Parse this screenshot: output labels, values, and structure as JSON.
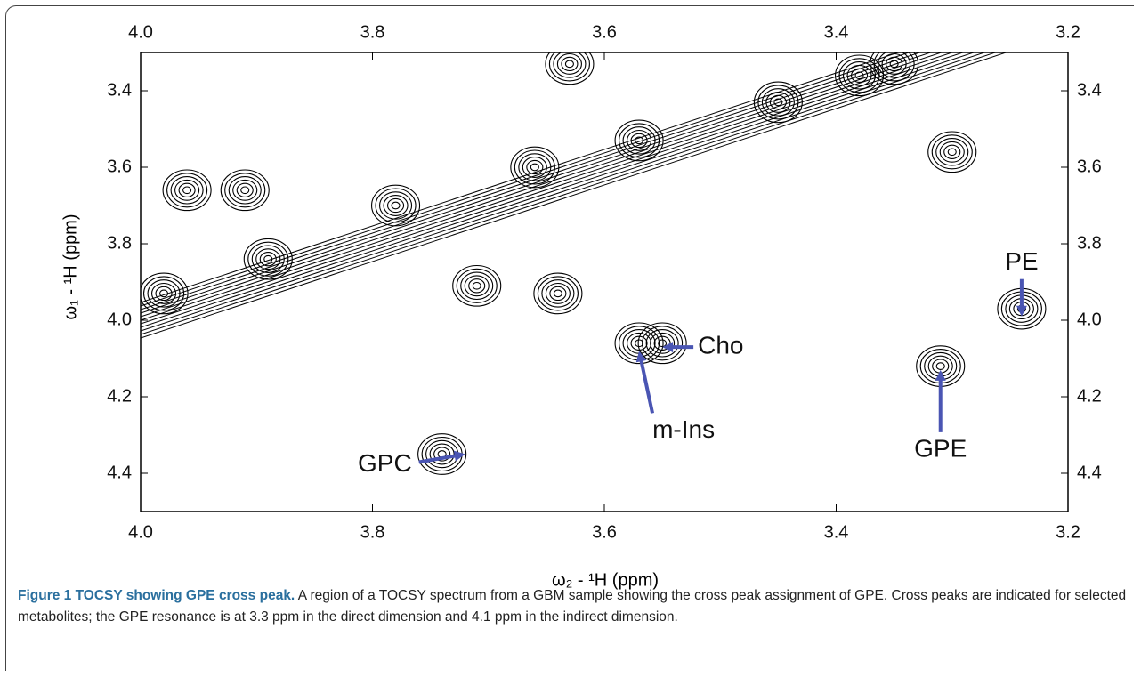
{
  "chart_data": {
    "type": "contour",
    "xlabel": "ω₂ - ¹H (ppm)",
    "ylabel": "ω₁ - ¹H (ppm)",
    "xlim": [
      4.0,
      3.2
    ],
    "ylim": [
      3.3,
      4.5
    ],
    "xticks": [
      {
        "value": 4,
        "label": "4.0"
      },
      3.8,
      3.6,
      3.4,
      {
        "value": 3.2,
        "label": "3.2"
      }
    ],
    "yticks": [
      3.4,
      3.6,
      3.8,
      {
        "value": 4,
        "label": "4.0"
      },
      4.2,
      4.4
    ],
    "color": "#000000",
    "peaks": {
      "x": [
        3.96,
        3.91,
        3.71,
        3.64,
        3.57,
        3.55,
        3.74,
        3.31,
        3.24,
        3.3,
        3.45,
        3.38,
        3.57,
        3.66,
        3.78,
        3.89,
        3.98,
        3.35,
        3.63
      ],
      "y": [
        3.66,
        3.66,
        3.91,
        3.93,
        4.06,
        4.06,
        4.35,
        4.12,
        3.97,
        3.56,
        3.43,
        3.36,
        3.53,
        3.6,
        3.7,
        3.84,
        3.93,
        3.33,
        3.33
      ]
    },
    "annotations": [
      {
        "text": "GPC",
        "x": 3.72,
        "y": 4.35,
        "side": "left"
      },
      {
        "text": "Cho",
        "x": 3.55,
        "y": 4.07,
        "side": "right"
      },
      {
        "text": "m-Ins",
        "x": 3.57,
        "y": 4.08,
        "side": "below"
      },
      {
        "text": "GPE",
        "x": 3.31,
        "y": 4.13,
        "side": "below"
      },
      {
        "text": "PE",
        "x": 3.24,
        "y": 3.99,
        "side": "above"
      }
    ],
    "arrow_color": "#4a55b3"
  },
  "caption": {
    "title": "Figure 1 TOCSY showing GPE cross peak.",
    "text": "A region of a TOCSY spectrum from a GBM sample showing the cross peak assignment of GPE. Cross peaks are indicated for selected metabolites; the GPE resonance is at 3.3 ppm in the direct dimension and 4.1 ppm in the indirect dimension."
  }
}
